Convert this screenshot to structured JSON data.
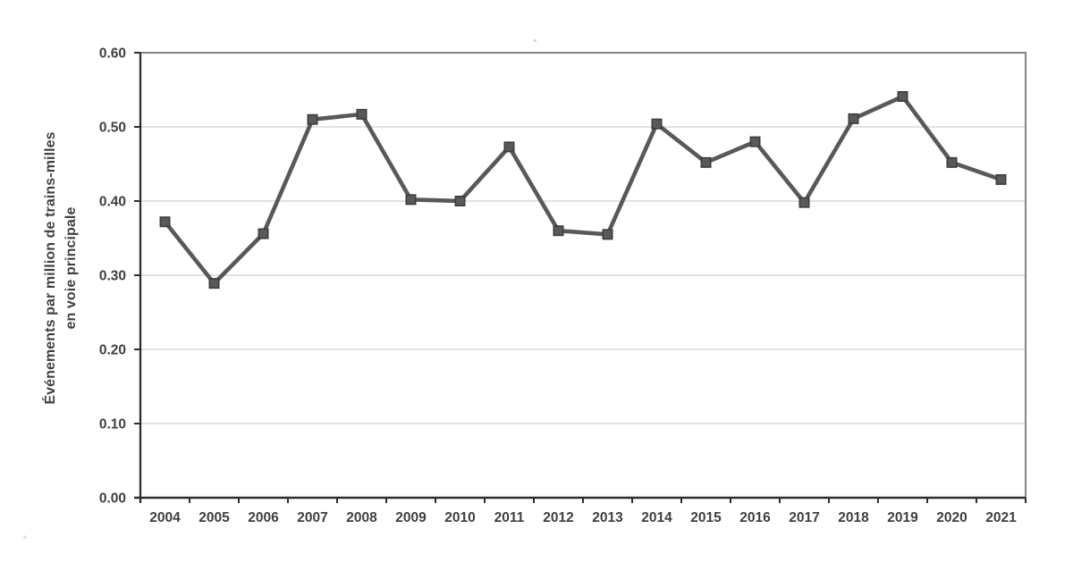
{
  "chart_data": {
    "type": "line",
    "x": [
      "2004",
      "2005",
      "2006",
      "2007",
      "2008",
      "2009",
      "2010",
      "2011",
      "2012",
      "2013",
      "2014",
      "2015",
      "2016",
      "2017",
      "2018",
      "2019",
      "2020",
      "2021"
    ],
    "series": [
      {
        "name": "Événements par million de trains-milles en voie principale",
        "values": [
          0.372,
          0.289,
          0.356,
          0.51,
          0.517,
          0.402,
          0.4,
          0.473,
          0.36,
          0.355,
          0.504,
          0.452,
          0.48,
          0.398,
          0.511,
          0.541,
          0.452,
          0.429
        ]
      }
    ],
    "title": "",
    "xlabel": "",
    "ylabel": "Événements par million de trains-milles en voie principale",
    "ylabel_lines": [
      "Événements par million de trains-milles",
      "en voie principale"
    ],
    "ylim": [
      0,
      0.6
    ],
    "ytick_step": 0.1,
    "yticks": [
      "0.00",
      "0.10",
      "0.20",
      "0.30",
      "0.40",
      "0.50",
      "0.60"
    ],
    "grid": "horizontal-only",
    "legend": "none",
    "marker": "square",
    "colors": {
      "series": "#595959",
      "marker_border": "#3d3d3d",
      "gridline": "#d9d9d9",
      "axis": "#2e2e2e",
      "plot_border": "#848484",
      "tick_text": "#3f3f3f",
      "background": "#ffffff"
    }
  }
}
